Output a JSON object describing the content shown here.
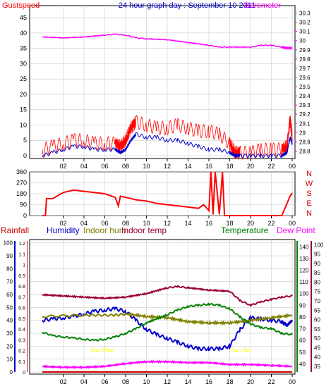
{
  "colors": {
    "gust": "#ff0000",
    "wind": "#0000cc",
    "baro": "#ff00ff",
    "winddir": "#ff0000",
    "rain": "#cc0000",
    "humidity": "#0000cc",
    "indoorhum": "#808000",
    "indoortemp": "#990033",
    "temperature": "#008000",
    "dewpoint": "#ff00ff",
    "sunmark": "#ffff00",
    "grid": "#c0c0c0"
  },
  "chart_data": [
    {
      "type": "line",
      "title": "24 hour graph day : September 10 2011",
      "left_label": "Gustspeed",
      "right_label": "Barometer",
      "x_ticks": [
        "02",
        "04",
        "06",
        "08",
        "10",
        "12",
        "14",
        "16",
        "18",
        "20",
        "22",
        "00"
      ],
      "y_left_ticks": [
        0,
        5,
        10,
        15,
        20,
        25,
        30,
        35,
        40,
        45
      ],
      "ylim_left": [
        0,
        48
      ],
      "y_right_ticks": [
        "28.8",
        "28.9",
        "29",
        "29.1",
        "29.2",
        "29.3",
        "29.4",
        "29.5",
        "29.6",
        "29.7",
        "29.8",
        "29.9",
        "30",
        "30.1",
        "30.2",
        "30.3"
      ],
      "ylim_right": [
        28.75,
        30.35
      ],
      "grid": true,
      "series": [
        {
          "name": "Gustspeed",
          "axis": "left",
          "x": [
            0,
            1,
            2,
            3,
            4,
            5,
            6,
            7,
            7.5,
            8,
            8.5,
            9,
            10,
            11,
            12,
            13,
            14,
            15,
            16,
            17,
            18,
            18.5,
            19,
            20,
            21,
            22,
            23,
            23.5,
            23.8,
            24
          ],
          "values": [
            2,
            3,
            4,
            5,
            5,
            4,
            4,
            4,
            3,
            5,
            9,
            11,
            10,
            9,
            9,
            10,
            9,
            8,
            8,
            7,
            4,
            1,
            1,
            1,
            2,
            2,
            2,
            3,
            12,
            6
          ]
        },
        {
          "name": "Windspeed",
          "axis": "left",
          "x": [
            0,
            1,
            2,
            3,
            4,
            5,
            6,
            7,
            7.5,
            8,
            8.5,
            9,
            10,
            11,
            12,
            13,
            14,
            15,
            16,
            17,
            18,
            18.5,
            19,
            20,
            21,
            22,
            23,
            23.5,
            23.8,
            24
          ],
          "values": [
            0,
            1,
            2,
            3,
            3,
            2,
            2,
            2,
            1,
            2,
            5,
            7,
            6,
            6,
            5,
            5,
            4,
            3,
            2,
            2,
            1,
            0,
            0,
            0,
            0,
            0,
            0,
            1,
            6,
            4
          ]
        },
        {
          "name": "Barometer",
          "axis": "right",
          "x": [
            0,
            2,
            4,
            6,
            7,
            8,
            9,
            10,
            12,
            14,
            16,
            17,
            18,
            20,
            21,
            22,
            23,
            23.5,
            24
          ],
          "values": [
            30.04,
            30.03,
            30.04,
            30.06,
            30.07,
            30.06,
            30.03,
            30.02,
            30.01,
            29.98,
            29.95,
            29.93,
            29.93,
            29.93,
            29.95,
            29.95,
            29.93,
            29.92,
            29.92
          ]
        }
      ]
    },
    {
      "type": "line",
      "left_label": "",
      "x_ticks": [
        "02",
        "04",
        "06",
        "08",
        "10",
        "12",
        "14",
        "16",
        "18",
        "20",
        "22",
        "00"
      ],
      "y_left_ticks": [
        0,
        90,
        180,
        270,
        360
      ],
      "ylim_left": [
        0,
        360
      ],
      "compass_labels": [
        "N",
        "W",
        "S",
        "E",
        "N"
      ],
      "grid": true,
      "series": [
        {
          "name": "Wind direction",
          "axis": "left",
          "x": [
            0,
            0.3,
            0.4,
            1,
            2,
            3,
            4,
            5,
            6,
            7,
            7.3,
            7.5,
            8,
            9,
            10,
            11,
            12,
            13,
            14,
            15,
            15.5,
            16,
            16.2,
            16.4,
            16.6,
            17,
            17.3,
            17.5,
            18,
            19,
            20,
            21,
            22,
            23,
            23.8,
            24
          ],
          "values": [
            0,
            0,
            140,
            140,
            190,
            210,
            200,
            190,
            180,
            150,
            80,
            160,
            150,
            130,
            120,
            100,
            90,
            80,
            70,
            60,
            90,
            40,
            360,
            10,
            360,
            10,
            360,
            0,
            0,
            0,
            0,
            0,
            0,
            0,
            160,
            185
          ]
        }
      ]
    },
    {
      "type": "line",
      "legend": [
        "Rainfall",
        "Humidity",
        "Indoor hum",
        "Indoor temp",
        "Temperature",
        "Dew Point"
      ],
      "x_ticks": [
        "02",
        "04",
        "06",
        "08",
        "10",
        "12",
        "14",
        "16",
        "18",
        "20",
        "22",
        "00"
      ],
      "axis_rain_ticks": [
        "0",
        "0.1",
        "0.2",
        "0.3",
        "0.4",
        "0.5",
        "0.6",
        "0.7",
        "0.8",
        "0.9",
        "1",
        "1.1",
        "1.2"
      ],
      "axis_hum_ticks": [
        0,
        10,
        20,
        30,
        40,
        50,
        60,
        70,
        80,
        90,
        100
      ],
      "axis_temp_ticks": [
        40,
        50,
        60,
        70,
        80,
        90,
        100,
        110,
        120,
        130,
        140
      ],
      "axis_dew_ticks": [
        35,
        40,
        45,
        50,
        55,
        60,
        65,
        70,
        75,
        80,
        85,
        90,
        95,
        100
      ],
      "ylim_rain": [
        0,
        1.22
      ],
      "ylim_hum": [
        0,
        101.5
      ],
      "ylim_temp": [
        33,
        145
      ],
      "ylim_dew": [
        32,
        102
      ],
      "sun_labels": [
        "Sun Rise",
        "Sun Set"
      ],
      "sun_label_hours": [
        5.7,
        19.1
      ],
      "grid": true,
      "series": [
        {
          "name": "Rainfall",
          "axis": "rain",
          "x": [
            0,
            24
          ],
          "values": [
            0,
            0
          ]
        },
        {
          "name": "Humidity",
          "axis": "hum",
          "x": [
            0,
            1,
            2,
            3,
            4,
            5,
            6,
            7,
            8,
            9,
            10,
            11,
            12,
            13,
            14,
            15,
            16,
            17,
            18,
            19,
            20,
            21,
            22,
            23,
            23.5,
            24
          ],
          "values": [
            40,
            41,
            42,
            43,
            45,
            47,
            48,
            49,
            47,
            40,
            33,
            29,
            26,
            23,
            20,
            18,
            18,
            18,
            20,
            33,
            42,
            41,
            40,
            39,
            36,
            40
          ]
        },
        {
          "name": "Indoor hum",
          "axis": "hum",
          "x": [
            0,
            4,
            7,
            8,
            10,
            12,
            14,
            16,
            18,
            20,
            22,
            24
          ],
          "values": [
            43,
            44,
            44,
            45,
            43,
            42,
            39,
            38,
            38,
            40,
            42,
            44
          ]
        },
        {
          "name": "Indoor temp",
          "axis": "temp",
          "x": [
            0,
            2,
            4,
            6,
            8,
            10,
            12,
            13,
            14,
            16,
            18,
            19,
            20,
            21,
            22,
            23,
            24
          ],
          "values": [
            99,
            98,
            97,
            96,
            97,
            100,
            105,
            106,
            105,
            103,
            102,
            94,
            90,
            93,
            95,
            97,
            98
          ]
        },
        {
          "name": "Temperature",
          "axis": "temp",
          "x": [
            0,
            1,
            2,
            3,
            4,
            5,
            6,
            7,
            8,
            9,
            10,
            12,
            13,
            14,
            15,
            16,
            17,
            18,
            19,
            20,
            21,
            22,
            23,
            24
          ],
          "values": [
            67,
            64,
            63,
            62,
            61,
            60,
            61,
            63,
            66,
            70,
            75,
            82,
            86,
            89,
            90,
            91,
            90,
            87,
            80,
            74,
            71,
            70,
            66,
            65
          ]
        },
        {
          "name": "Dew Point",
          "axis": "dew",
          "x": [
            0,
            2,
            4,
            6,
            8,
            10,
            12,
            14,
            16,
            18,
            20,
            22,
            24
          ],
          "values": [
            35,
            34.5,
            34.5,
            35,
            36.5,
            37.5,
            37.5,
            37,
            37,
            36,
            36,
            35.5,
            35
          ]
        }
      ]
    }
  ]
}
